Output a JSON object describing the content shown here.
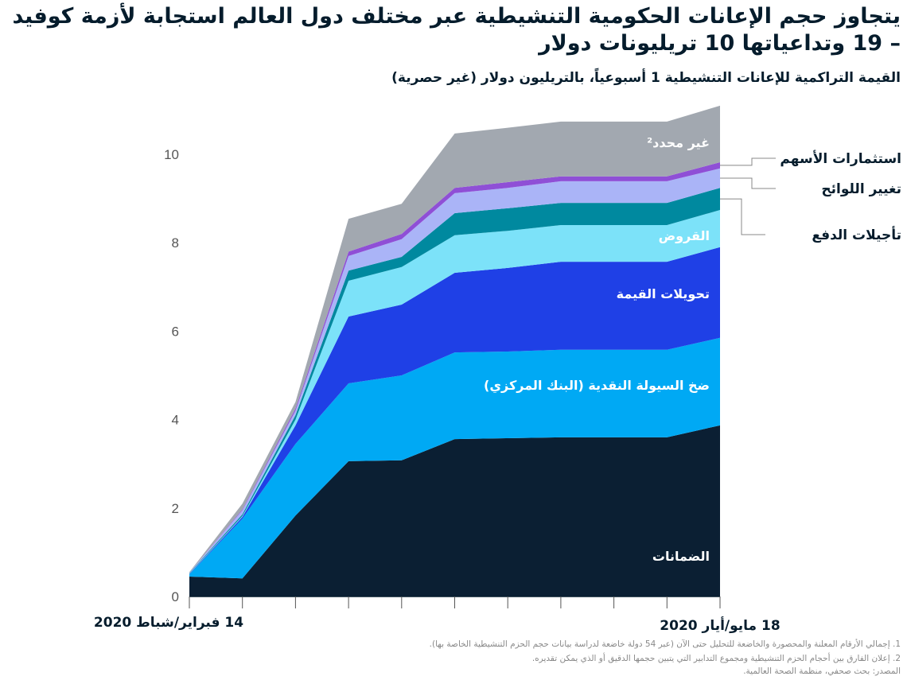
{
  "chart_data": {
    "type": "area",
    "stacked": true,
    "title": "يتجاوز حجم الإعانات الحكومية التنشيطية عبر مختلف دول العالم استجابة لأزمة كوفيد – 19 وتداعياتها 10 تريليونات دولار",
    "subtitle": "القيمة التراكمية للإعانات التنشيطية 1 أسبوعياً، بالتريليون دولار (غير حصرية)",
    "x_tick_labels": {
      "first": "14 فبراير/شباط 2020",
      "last": "18 مايو/أيار 2020"
    },
    "y_ticks": [
      "0",
      "2",
      "4",
      "6",
      "8",
      "10"
    ],
    "ylim": [
      0,
      11.2
    ],
    "grid": false,
    "series": [
      {
        "name": "الضمانات",
        "color": "#0b1f33",
        "label_color": "#ffffff",
        "values": [
          0.45,
          0.41,
          1.83,
          3.06,
          3.08,
          3.56,
          3.58,
          3.6,
          3.6,
          3.6,
          3.87
        ]
      },
      {
        "name": "ضخ السيولة النقدية (البنك المركزي)",
        "color": "#00a9f4",
        "label_color": "#ffffff",
        "values": [
          0.05,
          1.35,
          1.62,
          1.76,
          1.92,
          1.96,
          1.96,
          1.98,
          1.98,
          1.98,
          1.98
        ]
      },
      {
        "name": "تحويلات القيمة",
        "color": "#1f40e6",
        "label_color": "#ffffff",
        "values": [
          0.01,
          0.04,
          0.42,
          1.51,
          1.6,
          1.8,
          1.89,
          1.99,
          1.99,
          1.99,
          2.05
        ]
      },
      {
        "name": "القروض",
        "color": "#7ce2f9",
        "label_color": "#ffffff",
        "values": [
          0.01,
          0.02,
          0.13,
          0.81,
          0.85,
          0.85,
          0.84,
          0.83,
          0.83,
          0.83,
          0.84
        ]
      },
      {
        "name": "تأجيلات الدفع",
        "color": "#00899f",
        "label_color": "#051c2c",
        "values": [
          0.01,
          0.04,
          0.1,
          0.23,
          0.23,
          0.5,
          0.51,
          0.5,
          0.5,
          0.5,
          0.5
        ]
      },
      {
        "name": "تغيير اللوائح",
        "color": "#aab4f7",
        "label_color": "#051c2c",
        "values": [
          0.01,
          0.09,
          0.1,
          0.33,
          0.4,
          0.45,
          0.46,
          0.49,
          0.49,
          0.49,
          0.44
        ]
      },
      {
        "name": "استثمارات الأسهم",
        "color": "#8f4fd6",
        "label_color": "#051c2c",
        "values": [
          0,
          0.02,
          0.05,
          0.1,
          0.12,
          0.12,
          0.13,
          0.11,
          0.11,
          0.11,
          0.14
        ]
      },
      {
        "name": "غير محدد²",
        "color": "#a2a8b0",
        "label_color": "#ffffff",
        "values": [
          0.01,
          0.13,
          0.15,
          0.74,
          0.68,
          1.23,
          1.23,
          1.24,
          1.24,
          1.24,
          1.28
        ]
      }
    ]
  },
  "footnotes": [
    "1. إجمالي الأرقام المعلنة والمحصورة والخاضعة للتحليل حتى الآن (عبر 54 دولة خاضعة لدراسة بيانات حجم الحزم التنشيطية الخاصة بها).",
    "2. إعلان الفارق بين أحجام الحزم التنشيطية ومجموع التدابير التي يتبين حجمها الدقيق أو الذي يمكن تقديره.",
    "المصدر: بحث صحفي، منظمة الصحة العالمية."
  ]
}
